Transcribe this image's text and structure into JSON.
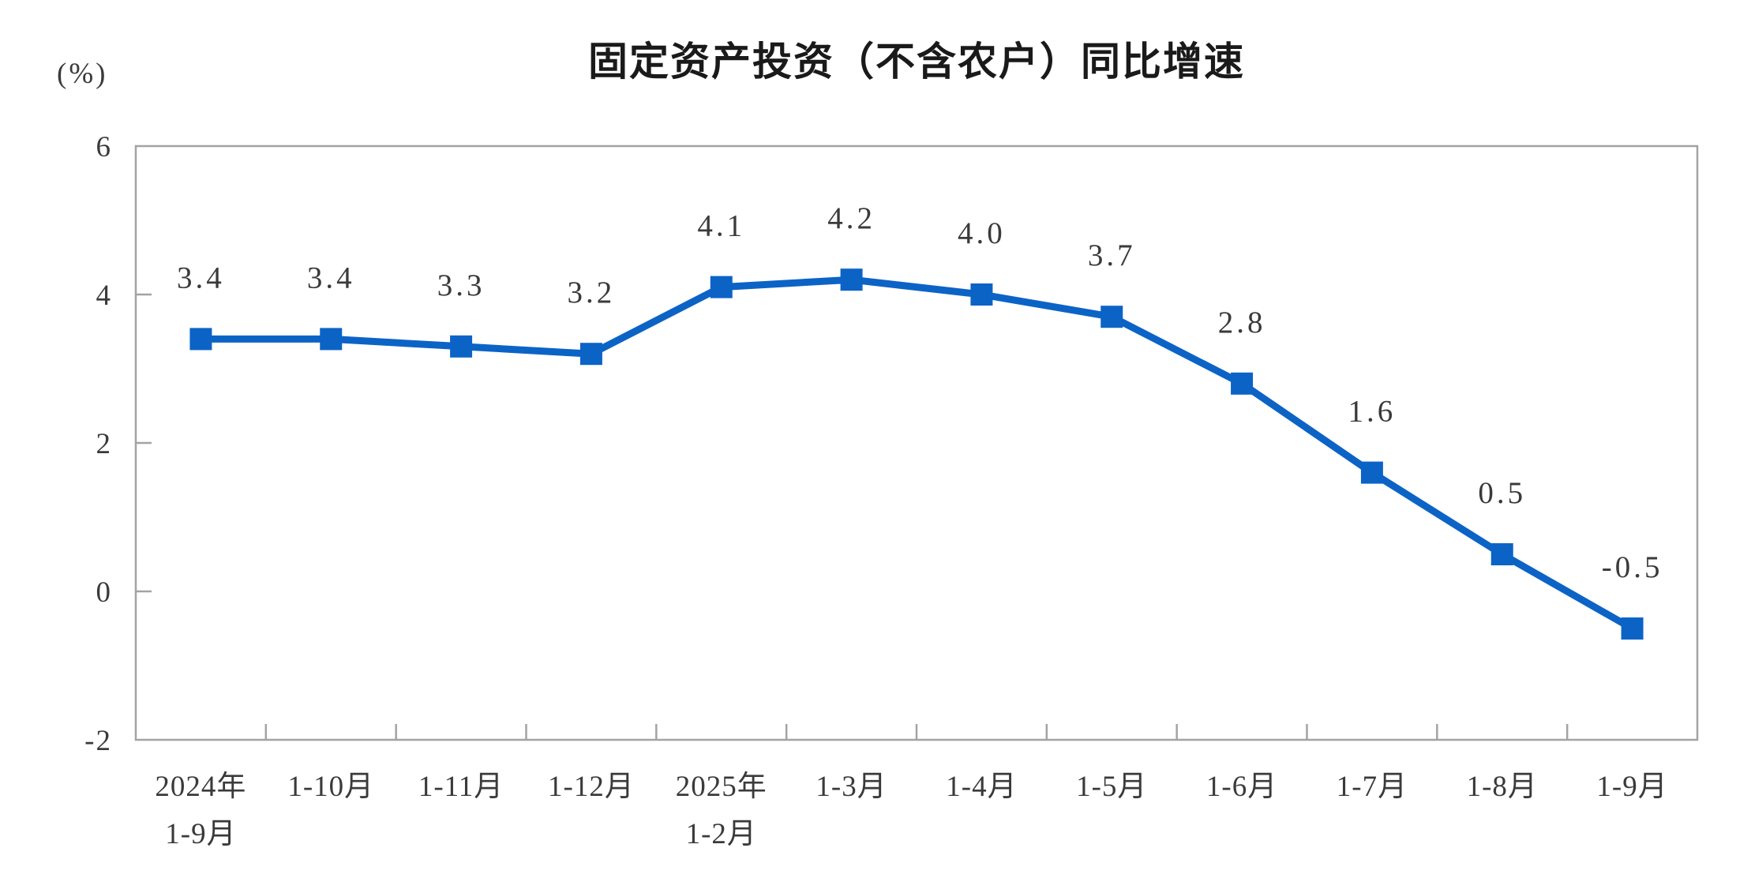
{
  "chart_data": {
    "type": "line",
    "title": "固定资产投资（不含农户）同比增速",
    "unit_label": "(%)",
    "categories": [
      [
        "2024年",
        "1-9月"
      ],
      [
        "1-10月"
      ],
      [
        "1-11月"
      ],
      [
        "1-12月"
      ],
      [
        "2025年",
        "1-2月"
      ],
      [
        "1-3月"
      ],
      [
        "1-4月"
      ],
      [
        "1-5月"
      ],
      [
        "1-6月"
      ],
      [
        "1-7月"
      ],
      [
        "1-8月"
      ],
      [
        "1-9月"
      ]
    ],
    "series": [
      {
        "name": "固定资产投资（不含农户）同比增速",
        "values": [
          3.4,
          3.4,
          3.3,
          3.2,
          4.1,
          4.2,
          4.0,
          3.7,
          2.8,
          1.6,
          0.5,
          -0.5
        ],
        "labels": [
          "3.4",
          "3.4",
          "3.3",
          "3.2",
          "4.1",
          "4.2",
          "4.0",
          "3.7",
          "2.8",
          "1.6",
          "0.5",
          "-0.5"
        ]
      }
    ],
    "xlabel": "",
    "ylabel": "(%)",
    "ylim": [
      -2,
      6
    ],
    "yticks": [
      6,
      4,
      2,
      0,
      -2
    ],
    "grid": false,
    "legend_position": "none",
    "marker": "square",
    "label_position": "above",
    "colors": {
      "line": "#0C63C6",
      "marker": "#0C63C6",
      "axis": "#A3A3A3",
      "text": "#3A3A3A",
      "title": "#1A1A1A",
      "background": "#FFFFFF"
    }
  }
}
